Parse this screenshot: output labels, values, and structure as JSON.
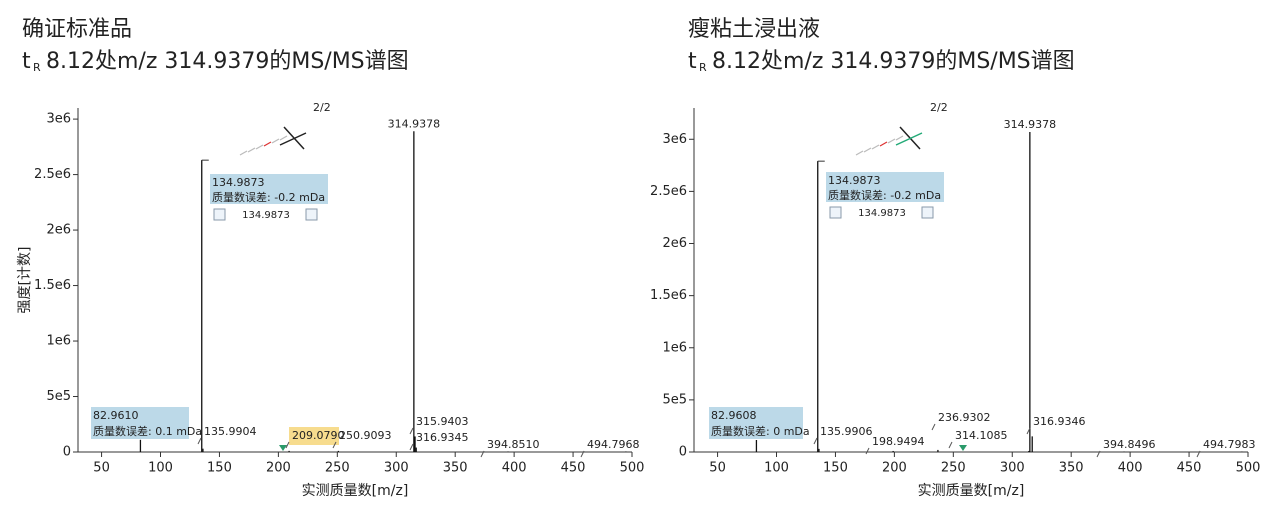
{
  "chart_data": [
    {
      "type": "stem",
      "title": "确证标准品",
      "subtitle_prefix": "t",
      "subtitle_subscript": "R",
      "subtitle": "8.12处m/z 314.9379的MS/MS谱图",
      "xlabel": "实测质量数[m/z]",
      "ylabel": "强度[计数]",
      "color": "#111111",
      "x": [
        82.961,
        134.9873,
        135.9904,
        209.079,
        250.9093,
        314.9378,
        315.9403,
        316.9345,
        394.851,
        494.7968
      ],
      "x_labels": [
        "82.9610",
        "134.9873",
        "135.9904",
        "209.0790",
        "250.9093",
        "314.9378",
        "315.9403",
        "316.9345",
        "394.8510",
        "494.7968"
      ],
      "values": [
        110000,
        2630000,
        30000,
        10000,
        10000,
        2890000,
        140000,
        40000,
        5000,
        5000
      ],
      "mass_errors": [
        "质量数误差: 0.1 mDa",
        "质量数误差: -0.2 mDa"
      ],
      "page_label": "2/2",
      "xlim": [
        30,
        500
      ],
      "xticks": [
        50,
        100,
        150,
        200,
        250,
        300,
        350,
        400,
        450,
        500
      ],
      "ylim": [
        0,
        3100000
      ],
      "yticks": [
        0,
        {
          "value": 500000,
          "label": "5e5"
        },
        {
          "value": 1000000,
          "label": "1e6"
        },
        {
          "value": 1500000,
          "label": "1.5e6"
        },
        {
          "value": 2000000,
          "label": "2e6"
        },
        {
          "value": 2500000,
          "label": "2.5e6"
        },
        {
          "value": 3000000,
          "label": "3e6"
        }
      ],
      "grid": false
    },
    {
      "type": "stem",
      "title": "瘦粘土浸出液",
      "subtitle_prefix": "t",
      "subtitle_subscript": "R",
      "subtitle": "8.12处m/z 314.9379的MS/MS谱图",
      "xlabel": "实测质量数[m/z]",
      "color": "#111111",
      "x": [
        82.9608,
        134.9873,
        135.9906,
        198.9494,
        236.9302,
        314.1085,
        314.9378,
        316.9346,
        394.8496,
        494.7983
      ],
      "x_labels": [
        "82.9608",
        "134.9873",
        "135.9906",
        "198.9494",
        "236.9302",
        "314.1085",
        "314.9378",
        "316.9346",
        "394.8496",
        "494.7983"
      ],
      "values": [
        115000,
        2790000,
        30000,
        10000,
        20000,
        10000,
        3070000,
        150000,
        5000,
        5000
      ],
      "mass_errors": [
        "质量数误差: 0 mDa",
        "质量数误差: -0.2 mDa"
      ],
      "page_label": "2/2",
      "xlim": [
        30,
        500
      ],
      "xticks": [
        50,
        100,
        150,
        200,
        250,
        300,
        350,
        400,
        450,
        500
      ],
      "ylim": [
        0,
        3300000
      ],
      "yticks": [
        0,
        {
          "value": 500000,
          "label": "5e5"
        },
        {
          "value": 1000000,
          "label": "1e6"
        },
        {
          "value": 1500000,
          "label": "1.5e6"
        },
        {
          "value": 2000000,
          "label": "2e6"
        },
        {
          "value": 2500000,
          "label": "2.5e6"
        },
        {
          "value": 3000000,
          "label": "3e6"
        }
      ],
      "grid": false
    }
  ]
}
